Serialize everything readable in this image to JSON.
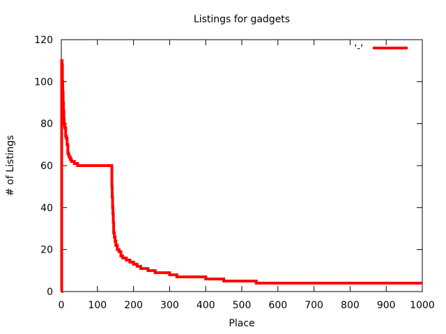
{
  "chart_data": {
    "type": "line",
    "title": "Listings for gadgets",
    "xlabel": "Place",
    "ylabel": "# of Listings",
    "xlim": [
      0,
      1000
    ],
    "ylim": [
      0,
      120
    ],
    "xticks": [
      0,
      100,
      200,
      300,
      400,
      500,
      600,
      700,
      800,
      900,
      1000
    ],
    "yticks": [
      0,
      20,
      40,
      60,
      80,
      100,
      120
    ],
    "grid": false,
    "legend_position": "top-right",
    "series": [
      {
        "name": "'-'",
        "color": "#ff0000",
        "line_type": "step",
        "x": [
          0,
          1,
          2,
          3,
          4,
          5,
          6,
          7,
          8,
          9,
          10,
          12,
          14,
          16,
          18,
          20,
          22,
          25,
          28,
          32,
          36,
          40,
          45,
          139,
          140,
          141,
          142,
          143,
          144,
          145,
          147,
          149,
          151,
          155,
          160,
          165,
          170,
          180,
          190,
          200,
          210,
          220,
          240,
          260,
          280,
          300,
          320,
          350,
          400,
          450,
          500,
          540,
          600,
          1000
        ],
        "y": [
          0,
          110,
          108,
          100,
          95,
          90,
          86,
          82,
          80,
          79,
          78,
          74,
          73,
          70,
          66,
          65,
          64,
          63,
          62,
          62,
          61,
          61,
          60,
          60,
          50,
          45,
          40,
          37,
          33,
          28,
          26,
          24,
          22,
          20,
          19,
          17,
          16,
          15,
          14,
          13,
          12,
          11,
          10,
          9,
          9,
          8,
          7,
          7,
          6,
          5,
          5,
          4,
          4,
          4
        ]
      }
    ]
  }
}
